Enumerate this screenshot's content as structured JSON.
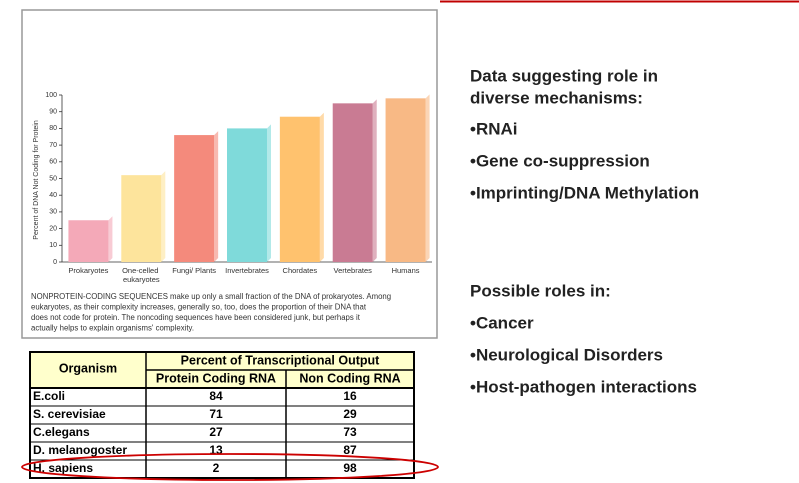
{
  "chart_data": {
    "type": "bar",
    "ylabel": "Percent of DNA Not Coding for Protein",
    "categories": [
      "Prokaryotes",
      "One-celled eukaryotes",
      "Fungi/ Plants",
      "Invertebrates",
      "Chordates",
      "Vertebrates",
      "Humans"
    ],
    "values": [
      25,
      52,
      76,
      80,
      87,
      95,
      98
    ],
    "colors": [
      "#f4a9b8",
      "#fde49c",
      "#f48a7c",
      "#7fdada",
      "#ffc26e",
      "#c97b93",
      "#f8b985"
    ],
    "ylim": [
      0,
      100
    ],
    "yticks": [
      0,
      10,
      20,
      30,
      40,
      50,
      60,
      70,
      80,
      90,
      100
    ]
  },
  "caption": [
    "NONPROTEIN-CODING SEQUENCES make up only a small fraction of the DNA of prokaryotes. Among",
    "eukaryotes, as their complexity increases, generally so, too, does the proportion of their DNA that",
    "does not code for protein. The noncoding sequences have been considered junk, but perhaps it",
    "actually helps to explain organisms' complexity."
  ],
  "table": {
    "header": [
      "Organism",
      "Percent of Transcriptional Output"
    ],
    "subheader": [
      "Protein Coding RNA",
      "Non Coding RNA"
    ],
    "rows": [
      [
        "E.coli",
        84,
        16
      ],
      [
        "S. cerevisiae",
        71,
        29
      ],
      [
        "C.elegans",
        27,
        73
      ],
      [
        "D. melanogoster",
        13,
        87
      ],
      [
        "H. sapiens",
        2,
        98
      ]
    ]
  },
  "side": {
    "heading1": [
      "Data suggesting role in",
      "diverse mechanisms:"
    ],
    "bullets1": [
      "•RNAi",
      "•Gene co-suppression",
      "•Imprinting/DNA Methylation"
    ],
    "heading2": "Possible roles in:",
    "bullets2": [
      "•Cancer",
      "•Neurological Disorders",
      "•Host-pathogen interactions"
    ]
  }
}
